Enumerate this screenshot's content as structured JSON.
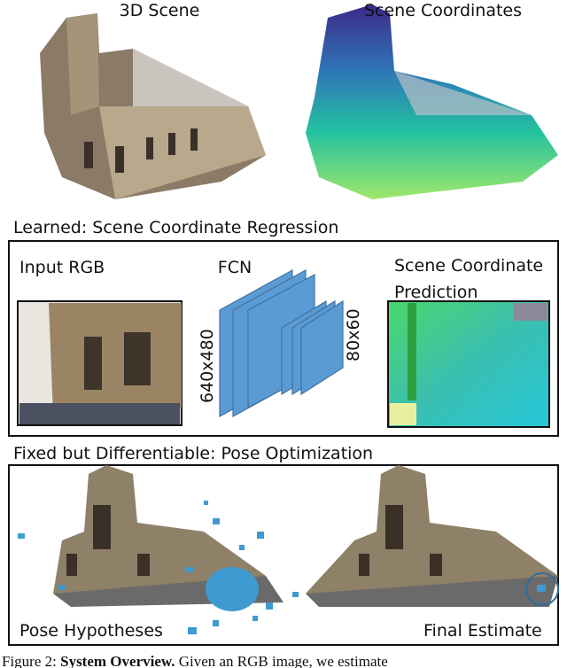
{
  "panels": {
    "top_left_label": "3D Scene",
    "top_right_label": "Scene Coordinates"
  },
  "learned": {
    "title": "Learned: Scene Coordinate Regression",
    "input_label": "Input RGB",
    "network_label": "FCN",
    "input_size": "640x480",
    "output_size": "80x60",
    "output_label_line1": "Scene Coordinate",
    "output_label_line2": "Prediction"
  },
  "fixed": {
    "title": "Fixed but Differentiable: Pose Optimization",
    "left_label": "Pose Hypotheses",
    "right_label": "Final Estimate"
  },
  "caption": {
    "label": "Figure 2:",
    "bold": "System Overview.",
    "text": "Given an RGB image, we estimate"
  }
}
